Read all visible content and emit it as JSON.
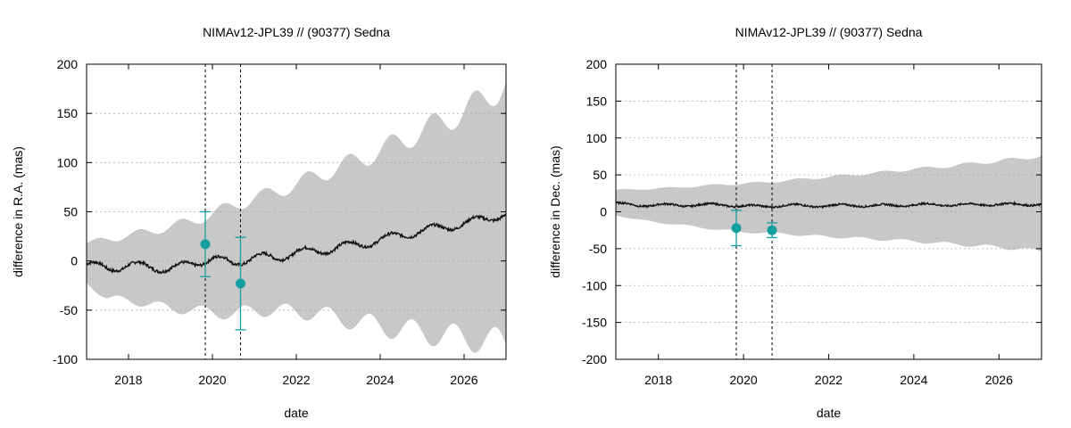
{
  "chart_data": [
    {
      "type": "line",
      "title": "NIMAv12-JPL39 // (90377) Sedna",
      "xlabel": "date",
      "ylabel": "difference in R.A. (mas)",
      "xlim": [
        2017.0,
        2027.0
      ],
      "ylim": [
        -100,
        200
      ],
      "xticks": [
        2018,
        2020,
        2022,
        2024,
        2026
      ],
      "yticks": [
        -100,
        -50,
        0,
        50,
        100,
        150,
        200
      ],
      "grid": true,
      "colors": {
        "band": "#c8c8c8",
        "line": "#111111",
        "points": "#14a0a0",
        "vlines": "#000000"
      },
      "vlines": [
        2019.83,
        2020.67
      ],
      "band": {
        "name": "uncertainty",
        "x": [
          2017.0,
          2017.5,
          2018.0,
          2018.5,
          2019.0,
          2019.5,
          2020.0,
          2020.5,
          2021.0,
          2021.5,
          2022.0,
          2022.5,
          2023.0,
          2023.5,
          2024.0,
          2024.5,
          2025.0,
          2025.5,
          2026.0,
          2026.5,
          2027.0
        ],
        "upper": [
          18,
          22,
          26,
          30,
          35,
          40,
          48,
          56,
          64,
          70,
          78,
          87,
          95,
          103,
          112,
          122,
          132,
          142,
          152,
          165,
          182
        ],
        "lower": [
          -22,
          -38,
          -40,
          -44,
          -48,
          -50,
          -52,
          -54,
          -50,
          -50,
          -52,
          -53,
          -58,
          -62,
          -66,
          -70,
          -72,
          -76,
          -78,
          -80,
          -85
        ]
      },
      "series": [
        {
          "name": "NIMAv12-JPL39",
          "x": [
            2017.0,
            2017.5,
            2018.0,
            2018.5,
            2019.0,
            2019.5,
            2020.0,
            2020.5,
            2021.0,
            2021.5,
            2022.0,
            2022.5,
            2023.0,
            2023.5,
            2024.0,
            2024.5,
            2025.0,
            2025.5,
            2026.0,
            2026.5,
            2027.0
          ],
          "y": [
            -3,
            -8,
            -4,
            -6,
            -8,
            -3,
            3,
            -3,
            5,
            2,
            10,
            9,
            15,
            16,
            22,
            26,
            31,
            34,
            38,
            43,
            48
          ]
        }
      ],
      "points": [
        {
          "x": 2019.83,
          "y": 17,
          "err": 33
        },
        {
          "x": 2020.67,
          "y": -23,
          "err": 47
        }
      ]
    },
    {
      "type": "line",
      "title": "NIMAv12-JPL39 // (90377) Sedna",
      "xlabel": "date",
      "ylabel": "difference in Dec. (mas)",
      "xlim": [
        2017.0,
        2027.0
      ],
      "ylim": [
        -200,
        200
      ],
      "xticks": [
        2018,
        2020,
        2022,
        2024,
        2026
      ],
      "yticks": [
        -200,
        -150,
        -100,
        -50,
        0,
        50,
        100,
        150,
        200
      ],
      "grid": true,
      "colors": {
        "band": "#c8c8c8",
        "line": "#111111",
        "points": "#14a0a0",
        "vlines": "#000000"
      },
      "vlines": [
        2019.83,
        2020.67
      ],
      "band": {
        "name": "uncertainty",
        "x": [
          2017.0,
          2017.5,
          2018.0,
          2018.5,
          2019.0,
          2019.5,
          2020.0,
          2020.5,
          2021.0,
          2021.5,
          2022.0,
          2022.5,
          2023.0,
          2023.5,
          2024.0,
          2024.5,
          2025.0,
          2025.5,
          2026.0,
          2026.5,
          2027.0
        ],
        "upper": [
          30,
          30,
          32,
          33,
          35,
          37,
          38,
          40,
          42,
          45,
          47,
          50,
          52,
          55,
          58,
          60,
          63,
          66,
          69,
          72,
          76
        ],
        "lower": [
          -5,
          -10,
          -15,
          -17,
          -22,
          -24,
          -28,
          -28,
          -30,
          -32,
          -34,
          -35,
          -37,
          -38,
          -40,
          -42,
          -44,
          -46,
          -48,
          -50,
          -54
        ]
      },
      "series": [
        {
          "name": "NIMAv12-JPL39",
          "x": [
            2017.0,
            2017.5,
            2018.0,
            2018.5,
            2019.0,
            2019.5,
            2020.0,
            2020.5,
            2021.0,
            2021.5,
            2022.0,
            2022.5,
            2023.0,
            2023.5,
            2024.0,
            2024.5,
            2025.0,
            2025.5,
            2026.0,
            2026.5,
            2027.0
          ],
          "y": [
            12,
            8,
            10,
            8,
            10,
            9,
            8,
            7,
            9,
            8,
            8,
            9,
            8,
            9,
            9,
            10,
            9,
            10,
            10,
            10,
            10
          ]
        }
      ],
      "points": [
        {
          "x": 2019.83,
          "y": -22,
          "err": 24
        },
        {
          "x": 2020.67,
          "y": -25,
          "err": 10
        }
      ]
    }
  ]
}
